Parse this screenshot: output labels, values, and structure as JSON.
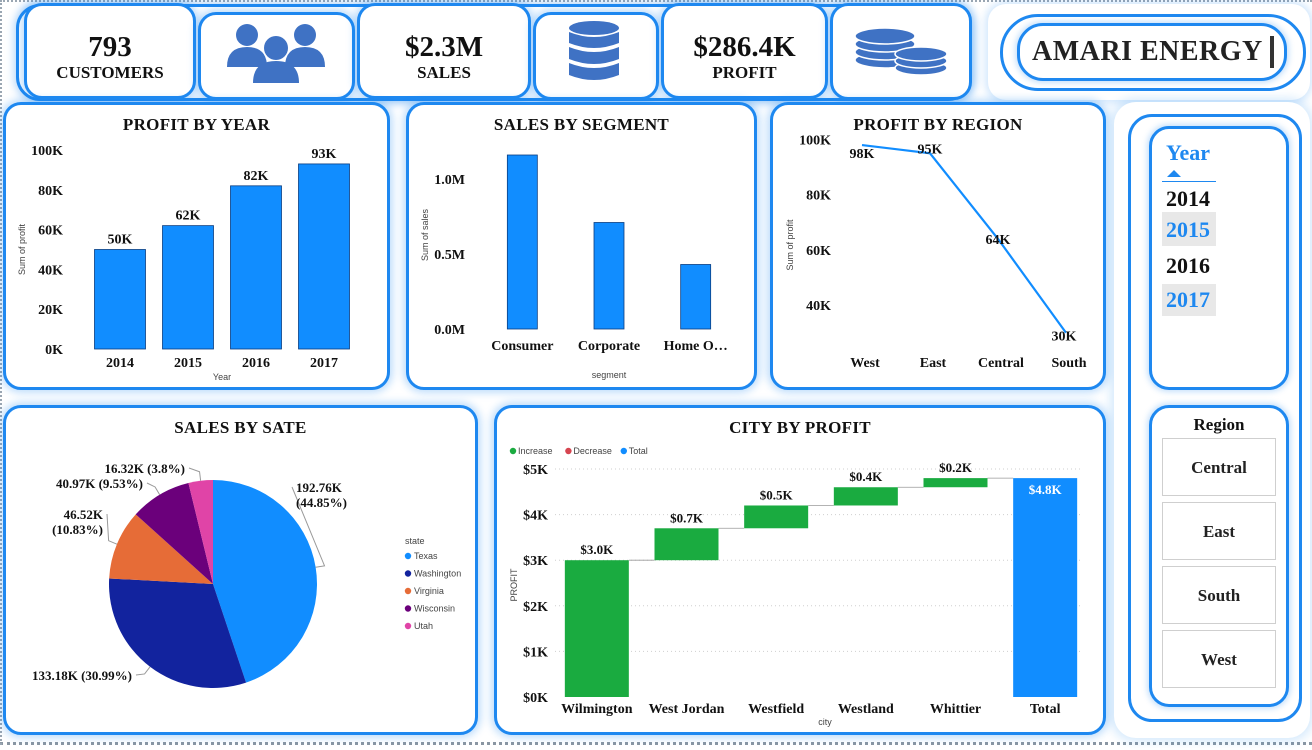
{
  "kpis": {
    "customers": {
      "value": "793",
      "label": "CUSTOMERS"
    },
    "sales": {
      "value": "$2.3M",
      "label": "SALES"
    },
    "profit": {
      "value": "$286.4K",
      "label": "PROFIT"
    }
  },
  "brand": {
    "name": "AMARI ENERGY"
  },
  "icons": [
    "users-icon",
    "database-icon",
    "coins-icon"
  ],
  "colors": {
    "accent": "#1e88f0",
    "bar": "#118dff",
    "increase": "#1aab40",
    "decrease": "#d64550",
    "total": "#118dff"
  },
  "slicers": {
    "year": {
      "title": "Year",
      "options": [
        "2014",
        "2015",
        "2016",
        "2017"
      ],
      "highlighted": [
        "2015",
        "2017"
      ]
    },
    "region": {
      "title": "Region",
      "options": [
        "Central",
        "East",
        "South",
        "West"
      ]
    }
  },
  "chart_data": [
    {
      "id": "profit_by_year",
      "type": "bar",
      "title": "PROFIT BY YEAR",
      "xlabel": "Year",
      "ylabel": "Sum of profit",
      "categories": [
        "2014",
        "2015",
        "2016",
        "2017"
      ],
      "values": [
        50,
        62,
        82,
        93
      ],
      "data_labels": [
        "50K",
        "62K",
        "82K",
        "93K"
      ],
      "ylim": [
        0,
        100
      ],
      "yticks": [
        "0K",
        "20K",
        "40K",
        "60K",
        "80K",
        "100K"
      ]
    },
    {
      "id": "sales_by_segment",
      "type": "bar",
      "title": "SALES BY SEGMENT",
      "xlabel": "segment",
      "ylabel": "Sum of sales",
      "categories": [
        "Consumer",
        "Corporate",
        "Home O…"
      ],
      "values": [
        1.16,
        0.71,
        0.43
      ],
      "ylim": [
        0,
        1.28
      ],
      "yticks": [
        "0.0M",
        "0.5M",
        "1.0M"
      ],
      "ytick_values": [
        0,
        0.5,
        1.0
      ]
    },
    {
      "id": "profit_by_region",
      "type": "line",
      "title": "PROFIT BY REGION",
      "ylabel": "Sum of profit",
      "categories": [
        "West",
        "East",
        "Central",
        "South"
      ],
      "values": [
        98,
        95,
        64,
        30
      ],
      "data_labels": [
        "98K",
        "95K",
        "64K",
        "30K"
      ],
      "ylim": [
        27,
        102
      ],
      "yticks": [
        "40K",
        "60K",
        "80K",
        "100K"
      ],
      "ytick_values": [
        40,
        60,
        80,
        100
      ]
    },
    {
      "id": "sales_by_state",
      "type": "pie",
      "title": "SALES BY SATE",
      "legend_title": "state",
      "slices": [
        {
          "name": "Texas",
          "value": 192.76,
          "label": "192.76K",
          "pct": "(44.85%)",
          "color": "#118dff"
        },
        {
          "name": "Washington",
          "value": 133.18,
          "label": "133.18K (30.99%)",
          "pct": "",
          "color": "#12239e"
        },
        {
          "name": "Virginia",
          "value": 46.52,
          "label": "46.52K",
          "pct": "(10.83%)",
          "color": "#e66c37"
        },
        {
          "name": "Wisconsin",
          "value": 40.97,
          "label": "40.97K (9.53%)",
          "pct": "",
          "color": "#6b007b"
        },
        {
          "name": "Utah",
          "value": 16.32,
          "label": "16.32K (3.8%)",
          "pct": "",
          "color": "#e044a7"
        }
      ]
    },
    {
      "id": "city_by_profit",
      "type": "waterfall",
      "title": "CITY BY PROFIT",
      "xlabel": "city",
      "ylabel": "PROFIT",
      "legend": [
        "Increase",
        "Decrease",
        "Total"
      ],
      "categories": [
        "Wilmington",
        "West Jordan",
        "Westfield",
        "Westland",
        "Whittier",
        "Total"
      ],
      "deltas": [
        3.0,
        0.7,
        0.5,
        0.4,
        0.2
      ],
      "data_labels": [
        "$3.0K",
        "$0.7K",
        "$0.5K",
        "$0.4K",
        "$0.2K",
        "$4.8K"
      ],
      "total": 4.8,
      "ylim": [
        0,
        5
      ],
      "yticks": [
        "$0K",
        "$1K",
        "$2K",
        "$3K",
        "$4K",
        "$5K"
      ]
    }
  ]
}
